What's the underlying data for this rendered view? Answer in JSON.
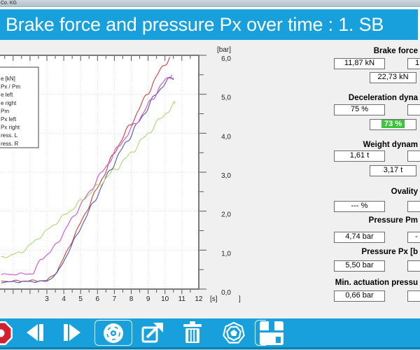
{
  "window": {
    "title_fragment": "Co. KG"
  },
  "header": {
    "title": "Brake force and pressure Px over time : 1. SB"
  },
  "colors": {
    "accent_blue": "#18a0dc",
    "highlight_green": "#3ec43e",
    "stop_red": "#d1212e"
  },
  "chart_data": {
    "type": "line",
    "title": "",
    "xlabel": "[s]",
    "ylabel": "[bar]",
    "xlim": [
      0.3,
      12
    ],
    "ylim": [
      0,
      6
    ],
    "grid": true,
    "x_ticks": [
      "3",
      "4",
      "5",
      "6",
      "7",
      "8",
      "9",
      "10",
      "11",
      "12"
    ],
    "y_tick_labels": [
      "0,0",
      "1,0",
      "2,0",
      "3,0",
      "4,0",
      "5,0",
      "6,0"
    ],
    "stray_bracket": "]",
    "legend_position": "top-left (clipped at screen edge)",
    "legend_items_visible": [
      "e [kN]",
      "Px / Pm",
      "e left",
      "e right",
      "Pm",
      "Px left",
      "Px right",
      "ress. L",
      "ress. R"
    ],
    "series": [
      {
        "name": "red-curve",
        "color": "#d1403e",
        "points": [
          [
            0.3,
            0.2
          ],
          [
            3.0,
            0.22
          ],
          [
            3.6,
            0.45
          ],
          [
            4.0,
            0.8
          ],
          [
            4.5,
            1.25
          ],
          [
            5.0,
            1.7
          ],
          [
            5.5,
            2.15
          ],
          [
            6.0,
            2.6
          ],
          [
            6.5,
            3.05
          ],
          [
            7.0,
            3.5
          ],
          [
            7.5,
            3.9
          ],
          [
            8.0,
            4.25
          ],
          [
            8.5,
            4.65
          ],
          [
            9.0,
            5.05
          ],
          [
            9.5,
            5.45
          ],
          [
            10.0,
            5.8
          ],
          [
            10.3,
            5.95
          ]
        ]
      },
      {
        "name": "blue-curve",
        "color": "#5352b5",
        "points": [
          [
            0.3,
            0.18
          ],
          [
            3.0,
            0.2
          ],
          [
            3.6,
            0.4
          ],
          [
            4.0,
            0.72
          ],
          [
            4.5,
            1.15
          ],
          [
            5.0,
            1.58
          ],
          [
            5.5,
            2.0
          ],
          [
            6.0,
            2.42
          ],
          [
            6.5,
            2.85
          ],
          [
            7.0,
            3.25
          ],
          [
            7.5,
            3.62
          ],
          [
            8.0,
            3.98
          ],
          [
            8.5,
            4.32
          ],
          [
            9.0,
            4.68
          ],
          [
            9.5,
            5.02
          ],
          [
            10.0,
            5.3
          ],
          [
            10.5,
            5.42
          ]
        ]
      },
      {
        "name": "magenta-curve",
        "color": "#cf4fcf",
        "points": [
          [
            0.3,
            0.37
          ],
          [
            2.2,
            0.4
          ],
          [
            2.6,
            0.75
          ],
          [
            3.2,
            0.95
          ],
          [
            3.8,
            1.3
          ],
          [
            4.4,
            1.75
          ],
          [
            5.0,
            2.15
          ],
          [
            5.6,
            2.55
          ],
          [
            6.2,
            2.95
          ],
          [
            6.8,
            3.35
          ],
          [
            7.4,
            3.75
          ],
          [
            8.0,
            4.1
          ],
          [
            8.6,
            4.45
          ],
          [
            9.2,
            4.85
          ],
          [
            9.8,
            5.25
          ],
          [
            10.4,
            5.5
          ]
        ]
      },
      {
        "name": "green-curve",
        "color": "#a8d978",
        "points": [
          [
            0.3,
            0.8
          ],
          [
            1.5,
            0.95
          ],
          [
            2.2,
            1.2
          ],
          [
            3.0,
            1.5
          ],
          [
            3.8,
            1.8
          ],
          [
            4.6,
            2.1
          ],
          [
            5.4,
            2.4
          ],
          [
            6.2,
            2.72
          ],
          [
            7.0,
            3.05
          ],
          [
            7.8,
            3.4
          ],
          [
            8.6,
            3.8
          ],
          [
            9.4,
            4.2
          ],
          [
            10.0,
            4.5
          ],
          [
            10.6,
            4.75
          ]
        ]
      }
    ]
  },
  "panel": {
    "sections": [
      {
        "label": "Brake force",
        "boxes": [
          {
            "pos": "left",
            "value": "11,87 kN"
          },
          {
            "pos": "right",
            "value": "1"
          },
          {
            "pos": "center",
            "value": "22,73 kN"
          }
        ]
      },
      {
        "label": "Deceleration dyna",
        "boxes": [
          {
            "pos": "left",
            "value": "75 %"
          },
          {
            "pos": "right",
            "value": ""
          },
          {
            "pos": "center",
            "value": "73 %",
            "highlight": true
          }
        ]
      },
      {
        "label": "Weight dynam",
        "boxes": [
          {
            "pos": "left",
            "value": "1,61 t"
          },
          {
            "pos": "right",
            "value": ""
          },
          {
            "pos": "center",
            "value": "3,17 t"
          }
        ]
      },
      {
        "label": "Ovality",
        "boxes": [
          {
            "pos": "left",
            "value": "--- %"
          },
          {
            "pos": "right",
            "value": ""
          }
        ]
      },
      {
        "label": "Pressure Pm",
        "boxes": [
          {
            "pos": "left",
            "value": "4,74 bar"
          },
          {
            "pos": "right",
            "value": "-"
          }
        ]
      },
      {
        "label": "Pressure Px  [b",
        "boxes": [
          {
            "pos": "left",
            "value": "5,50 bar"
          },
          {
            "pos": "right",
            "value": ""
          }
        ]
      },
      {
        "label": "Min. actuation pressu",
        "boxes": [
          {
            "pos": "left",
            "value": "0,66 bar"
          },
          {
            "pos": "right",
            "value": ""
          }
        ]
      }
    ]
  },
  "toolbar": {
    "icons": [
      "stop-octagon",
      "step-backward",
      "step-forward",
      "cd-disc",
      "export-arrow",
      "trash",
      "brake-disc",
      "floppy-save"
    ]
  }
}
